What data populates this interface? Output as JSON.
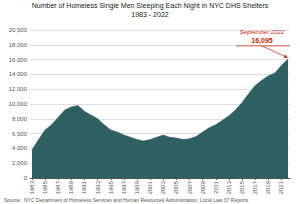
{
  "chart_data": {
    "type": "area",
    "title": "Number of Homeless Single Men Sleeping Each Night in NYC DHS Shelters",
    "subtitle": "1983 - 2022",
    "source": "Source:  NYC Department of Homeless Services and Human Resources Administration; Local Law 37 Reports",
    "x": [
      1983,
      1984,
      1985,
      1986,
      1987,
      1988,
      1989,
      1990,
      1991,
      1992,
      1993,
      1994,
      1995,
      1996,
      1997,
      1998,
      1999,
      2000,
      2001,
      2002,
      2003,
      2004,
      2005,
      2006,
      2007,
      2008,
      2009,
      2010,
      2011,
      2012,
      2013,
      2014,
      2015,
      2016,
      2017,
      2018,
      2019,
      2020,
      2021,
      2022
    ],
    "values": [
      3800,
      5200,
      6500,
      7200,
      8200,
      9200,
      9600,
      9800,
      9000,
      8500,
      8000,
      7200,
      6500,
      6200,
      5800,
      5500,
      5200,
      5000,
      5200,
      5500,
      5800,
      5500,
      5400,
      5200,
      5300,
      5600,
      6200,
      6800,
      7200,
      7800,
      8400,
      9200,
      10200,
      11400,
      12500,
      13200,
      13800,
      14200,
      15200,
      16095
    ],
    "color": "#2e5f61",
    "xlim": [
      1982.7,
      2022.3
    ],
    "xticks": [
      1983,
      1985,
      1987,
      1989,
      1991,
      1993,
      1995,
      1997,
      1999,
      2001,
      2003,
      2005,
      2007,
      2009,
      2011,
      2013,
      2015,
      2017,
      2019,
      2021
    ],
    "ylim": [
      0,
      20000
    ],
    "yticks": [
      0,
      {
        "value": 2000,
        "label": "2,000"
      },
      {
        "value": 4000,
        "label": "4,000"
      },
      {
        "value": 6000,
        "label": "6,000"
      },
      {
        "value": 8000,
        "label": "8,000"
      },
      {
        "value": 10000,
        "label": "10,000"
      },
      {
        "value": 12000,
        "label": "12,000"
      },
      {
        "value": 14000,
        "label": "14,000"
      },
      {
        "value": 16000,
        "label": "16,000"
      },
      {
        "value": 18000,
        "label": "18,000"
      },
      {
        "value": 20000,
        "label": "20,000"
      }
    ],
    "grid": true,
    "annotations": [
      {
        "text": "September 2022",
        "value_label": "16,095",
        "x": 2022,
        "y": 16095,
        "color": "#cc2200"
      }
    ]
  }
}
